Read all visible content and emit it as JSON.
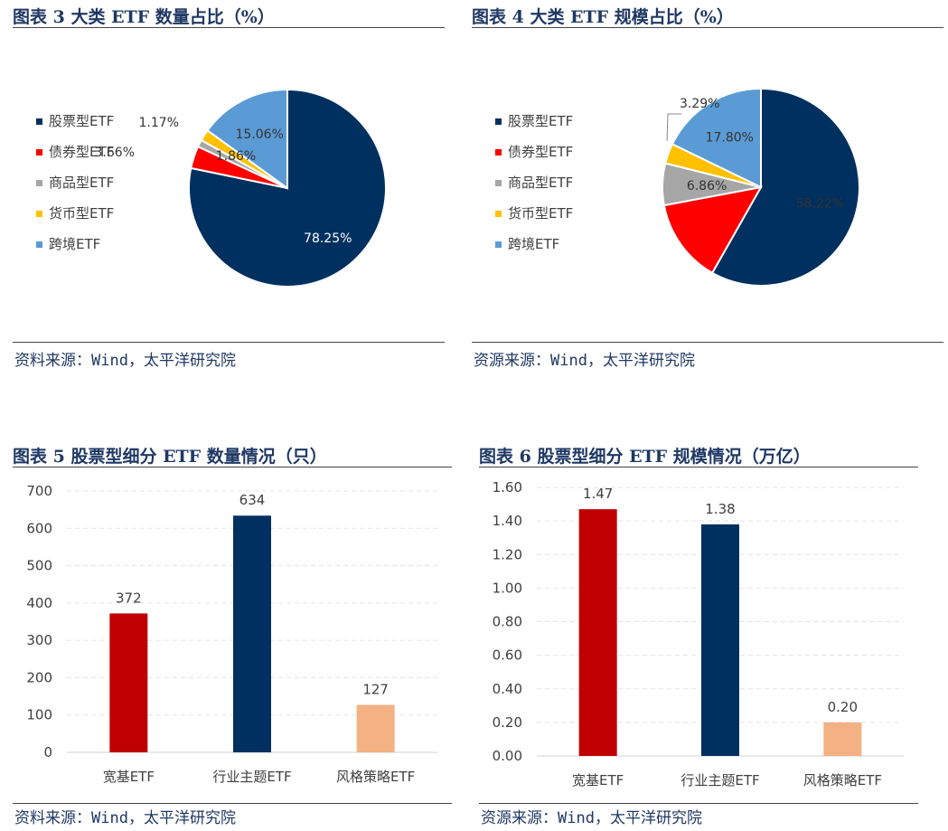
{
  "colors": {
    "navy": "#00305f",
    "red": "#ff0000",
    "gray": "#a6a6a6",
    "yellow": "#ffc000",
    "lightblue": "#5b9bd5",
    "darkred": "#c00000",
    "salmon": "#f4b183",
    "title": "#1f3864"
  },
  "chart_data": [
    {
      "type": "pie",
      "title": "图表 3 大类 ETF 数量占比（%）",
      "source": "资料来源：Wind，太平洋研究院",
      "legend_position": "left",
      "slices": [
        {
          "name": "股票型ETF",
          "value": 78.25,
          "label": "78.25%",
          "color": "#00305f"
        },
        {
          "name": "债券型ETF",
          "value": 3.66,
          "label": "3.66%",
          "color": "#ff0000"
        },
        {
          "name": "商品型ETF",
          "value": 1.17,
          "label": "1.17%",
          "color": "#a6a6a6"
        },
        {
          "name": "货币型ETF",
          "value": 1.86,
          "label": "1.86%",
          "color": "#ffc000"
        },
        {
          "name": "跨境ETF",
          "value": 15.06,
          "label": "15.06%",
          "color": "#5b9bd5"
        }
      ]
    },
    {
      "type": "pie",
      "title": "图表 4 大类 ETF 规模占比（%）",
      "source": "资源来源：Wind，太平洋研究院",
      "legend_position": "left",
      "slices": [
        {
          "name": "股票型ETF",
          "value": 58.22,
          "label": "58.22%",
          "color": "#00305f"
        },
        {
          "name": "债券型ETF",
          "value": 13.83,
          "label": "13.83%",
          "color": "#ff0000"
        },
        {
          "name": "商品型ETF",
          "value": 6.86,
          "label": "6.86%",
          "color": "#a6a6a6"
        },
        {
          "name": "货币型ETF",
          "value": 3.29,
          "label": "3.29%",
          "color": "#ffc000"
        },
        {
          "name": "跨境ETF",
          "value": 17.8,
          "label": "17.80%",
          "color": "#5b9bd5"
        }
      ]
    },
    {
      "type": "bar",
      "title": "图表 5 股票型细分 ETF 数量情况（只）",
      "source": "资料来源：Wind，太平洋研究院",
      "categories": [
        "宽基ETF",
        "行业主题ETF",
        "风格策略ETF"
      ],
      "values": [
        372,
        634,
        127
      ],
      "value_labels": [
        "372",
        "634",
        "127"
      ],
      "colors": [
        "#c00000",
        "#00305f",
        "#f4b183"
      ],
      "ylim": [
        0,
        700
      ],
      "yticks": [
        "0",
        "100",
        "200",
        "300",
        "400",
        "500",
        "600",
        "700"
      ],
      "grid": true
    },
    {
      "type": "bar",
      "title": "图表 6 股票型细分 ETF 规模情况（万亿）",
      "source": "资源来源：Wind，太平洋研究院",
      "categories": [
        "宽基ETF",
        "行业主题ETF",
        "风格策略ETF"
      ],
      "values": [
        1.47,
        1.38,
        0.2
      ],
      "value_labels": [
        "1.47",
        "1.38",
        "0.20"
      ],
      "colors": [
        "#c00000",
        "#00305f",
        "#f4b183"
      ],
      "ylim": [
        0,
        1.6
      ],
      "yticks": [
        "0.00",
        "0.20",
        "0.40",
        "0.60",
        "0.80",
        "1.00",
        "1.20",
        "1.40",
        "1.60"
      ],
      "grid": true
    }
  ]
}
